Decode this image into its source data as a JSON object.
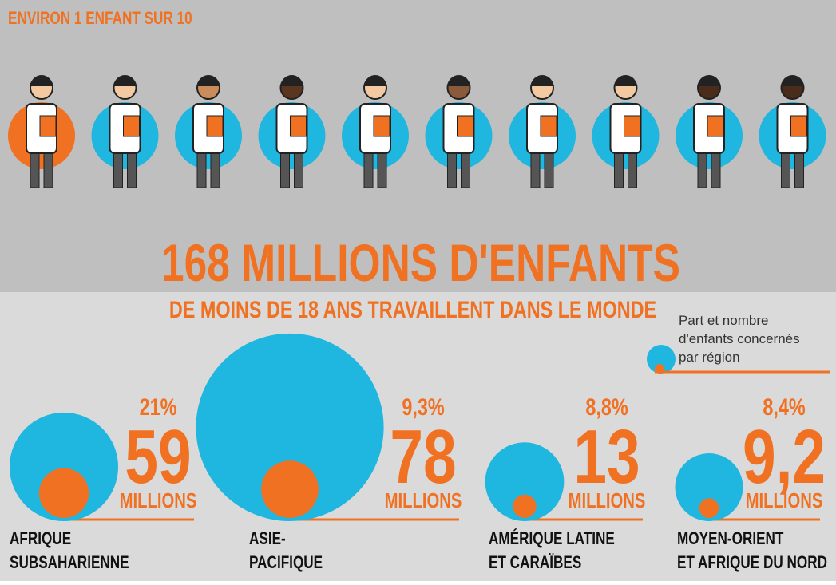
{
  "header": {
    "tagline": "ENVIRON 1 ENFANT SUR 10",
    "headline": "168 MILLIONS D'ENFANTS",
    "subheadline": "DE MOINS DE 18 ANS TRAVAILLENT DANS LE MONDE"
  },
  "legend": {
    "lines": [
      "Part et nombre",
      "d'enfants concernés",
      "par région"
    ]
  },
  "regions": [
    {
      "name": [
        "AFRIQUE",
        "SUBSAHARIENNE"
      ],
      "share": 21,
      "share_label": "21%",
      "children": 59,
      "unit": "MILLIONS"
    },
    {
      "name": [
        "ASIE-",
        "PACIFIQUE"
      ],
      "share": 9.3,
      "share_label": "9,3%",
      "children": 78,
      "unit": "MILLIONS"
    },
    {
      "name": [
        "AMÉRIQUE LATINE",
        "ET CARAÏBES"
      ],
      "share": 8.8,
      "share_label": "8,8%",
      "children": 13,
      "unit": "MILLIONS"
    },
    {
      "name": [
        "MOYEN-ORIENT",
        "ET AFRIQUE DU NORD"
      ],
      "share": 8.4,
      "share_label": "8,4%",
      "children": 9.2,
      "children_label": "9,2",
      "unit": "MILLIONS"
    }
  ]
}
